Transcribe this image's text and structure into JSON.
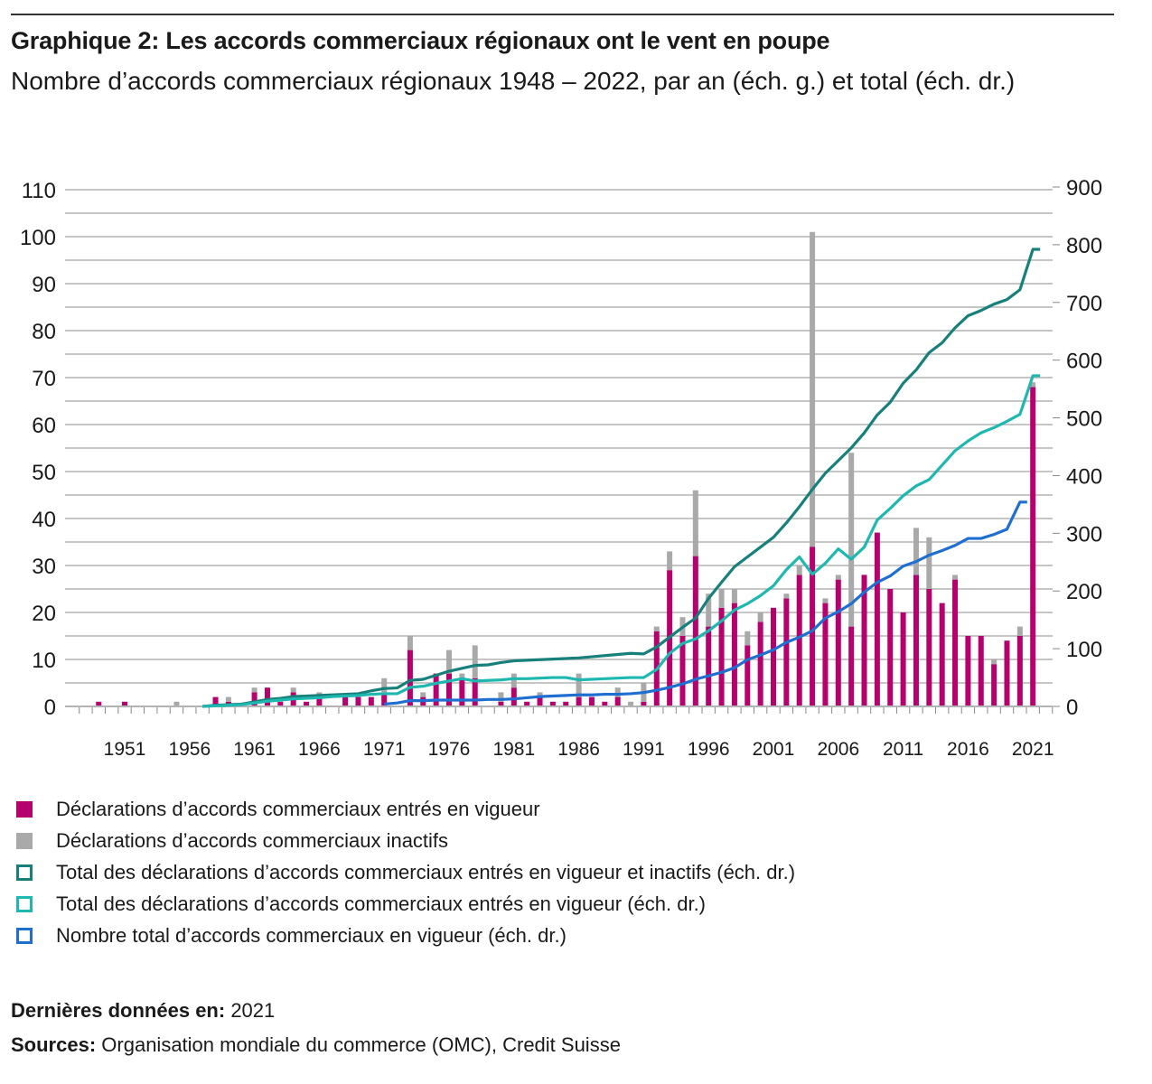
{
  "title": "Graphique 2: Les accords commerciaux régionaux ont le vent en poupe",
  "subtitle": "Nombre d’accords commerciaux régionaux 1948 – 2022, par an (éch. g.) et total (éch. dr.)",
  "colors": {
    "active": "#b5006e",
    "inactive": "#a9a9a9",
    "total_all": "#17807a",
    "total_active": "#1fb8b0",
    "in_force": "#1f6fd1"
  },
  "chart_data": {
    "type": "bar+line",
    "left_axis": {
      "ylim": [
        0,
        110
      ],
      "ticks": [
        "0",
        "10",
        "20",
        "30",
        "40",
        "50",
        "60",
        "70",
        "80",
        "90",
        "100",
        "110"
      ]
    },
    "right_axis": {
      "ylim": [
        0,
        900
      ],
      "ticks": [
        "0",
        "100",
        "200",
        "300",
        "400",
        "500",
        "600",
        "700",
        "800",
        "900"
      ]
    },
    "x_tick_labels": [
      "1951",
      "1956",
      "1961",
      "1966",
      "1971",
      "1976",
      "1981",
      "1986",
      "1991",
      "1996",
      "2001",
      "2006",
      "2011",
      "2016",
      "2021"
    ],
    "grid": true,
    "legend_placement": "bottom",
    "years": [
      1948,
      1949,
      1950,
      1951,
      1952,
      1953,
      1954,
      1955,
      1956,
      1957,
      1958,
      1959,
      1960,
      1961,
      1962,
      1963,
      1964,
      1965,
      1966,
      1967,
      1968,
      1969,
      1970,
      1971,
      1972,
      1973,
      1974,
      1975,
      1976,
      1977,
      1978,
      1979,
      1980,
      1981,
      1982,
      1983,
      1984,
      1985,
      1986,
      1987,
      1988,
      1989,
      1990,
      1991,
      1992,
      1993,
      1994,
      1995,
      1996,
      1997,
      1998,
      1999,
      2000,
      2001,
      2002,
      2003,
      2004,
      2005,
      2006,
      2007,
      2008,
      2009,
      2010,
      2011,
      2012,
      2013,
      2014,
      2015,
      2016,
      2017,
      2018,
      2019,
      2020,
      2021
    ],
    "bars": [
      {
        "name": "Déclarations d’accords commerciaux entrés en vigueur",
        "axis": "left",
        "values": [
          0,
          1,
          0,
          1,
          0,
          0,
          0,
          0,
          0,
          0,
          2,
          1,
          0,
          3,
          4,
          1,
          3,
          1,
          2,
          0,
          2,
          2,
          2,
          3,
          0,
          12,
          2,
          7,
          7,
          6,
          6,
          0,
          1,
          4,
          1,
          2,
          1,
          1,
          2,
          2,
          1,
          2,
          0,
          1,
          16,
          29,
          15,
          32,
          17,
          21,
          22,
          13,
          18,
          21,
          23,
          28,
          34,
          22,
          27,
          17,
          28,
          37,
          25,
          20,
          28,
          25,
          22,
          27,
          15,
          15,
          9,
          14,
          15,
          68
        ]
      },
      {
        "name": "Déclarations d’accords commerciaux inactifs",
        "axis": "left",
        "stacked": true,
        "values": [
          0,
          0,
          0,
          0,
          0,
          0,
          0,
          1,
          0,
          0,
          0,
          1,
          0,
          1,
          0,
          0,
          1,
          0,
          1,
          0,
          0,
          0,
          0,
          3,
          0,
          3,
          1,
          0,
          5,
          1,
          7,
          0,
          2,
          3,
          0,
          1,
          0,
          0,
          5,
          0,
          0,
          2,
          1,
          4,
          1,
          4,
          4,
          14,
          7,
          4,
          3,
          3,
          2,
          0,
          1,
          2,
          67,
          1,
          1,
          37,
          0,
          0,
          0,
          0,
          10,
          11,
          0,
          1,
          0,
          0,
          1,
          0,
          2,
          1
        ]
      }
    ],
    "lines": [
      {
        "name": "Total des déclarations d’accords commerciaux entrés en vigueur et inactifs (éch. dr.)",
        "axis": "right",
        "start_year": 1957,
        "values": [
          0,
          2,
          3,
          4,
          8,
          12,
          14,
          17,
          18,
          19,
          20,
          21,
          22,
          27,
          31,
          32,
          45,
          47,
          54,
          61,
          66,
          71,
          72,
          76,
          79,
          80,
          81,
          82,
          83,
          84,
          86,
          88,
          90,
          92,
          91,
          103,
          120,
          137,
          153,
          187,
          215,
          242,
          259,
          276,
          293,
          318,
          346,
          376,
          404,
          426,
          448,
          474,
          505,
          527,
          560,
          583,
          613,
          630,
          656,
          677,
          686,
          697,
          705,
          722,
          792
        ]
      },
      {
        "name": "Total des déclarations d’accords commerciaux entrés en vigueur (éch. dr.)",
        "axis": "right",
        "start_year": 1957,
        "values": [
          0,
          1,
          2,
          3,
          6,
          9,
          11,
          13,
          14,
          15,
          17,
          18,
          19,
          21,
          22,
          22,
          33,
          35,
          40,
          44,
          48,
          44,
          45,
          46,
          48,
          48,
          49,
          50,
          50,
          46,
          47,
          48,
          49,
          50,
          50,
          64,
          92,
          109,
          117,
          131,
          148,
          167,
          178,
          192,
          209,
          237,
          259,
          229,
          248,
          273,
          255,
          276,
          323,
          343,
          365,
          382,
          393,
          418,
          443,
          460,
          474,
          483,
          494,
          506,
          573
        ]
      },
      {
        "name": "Nombre total d’accords commerciaux en vigueur (éch. dr.)",
        "axis": "right",
        "start_year": 1971,
        "values": [
          4,
          6,
          10,
          10,
          11,
          11,
          11,
          11,
          12,
          12,
          13,
          15,
          17,
          18,
          19,
          20,
          20,
          21,
          21,
          22,
          24,
          28,
          33,
          39,
          47,
          53,
          59,
          67,
          81,
          89,
          98,
          111,
          120,
          131,
          153,
          164,
          178,
          198,
          215,
          226,
          243,
          251,
          262,
          270,
          279,
          291,
          291,
          298,
          307,
          354
        ]
      }
    ]
  },
  "legend": [
    {
      "label": "Déclarations d’accords commerciaux entrés en vigueur",
      "style": "filled",
      "color_key": "active"
    },
    {
      "label": "Déclarations d’accords commerciaux inactifs",
      "style": "filled",
      "color_key": "inactive"
    },
    {
      "label": "Total des déclarations d’accords commerciaux entrés en vigueur et inactifs (éch. dr.)",
      "style": "outline",
      "color_key": "total_all"
    },
    {
      "label": "Total des déclarations d’accords commerciaux entrés en vigueur (éch. dr.)",
      "style": "outline",
      "color_key": "total_active"
    },
    {
      "label": "Nombre total d’accords commerciaux en vigueur (éch. dr.)",
      "style": "outline",
      "color_key": "in_force"
    }
  ],
  "footer": {
    "last_data_label": "Dernières données en:",
    "last_data_value": "2021",
    "sources_label": "Sources:",
    "sources_value": "Organisation mondiale du commerce (OMC), Credit Suisse"
  }
}
